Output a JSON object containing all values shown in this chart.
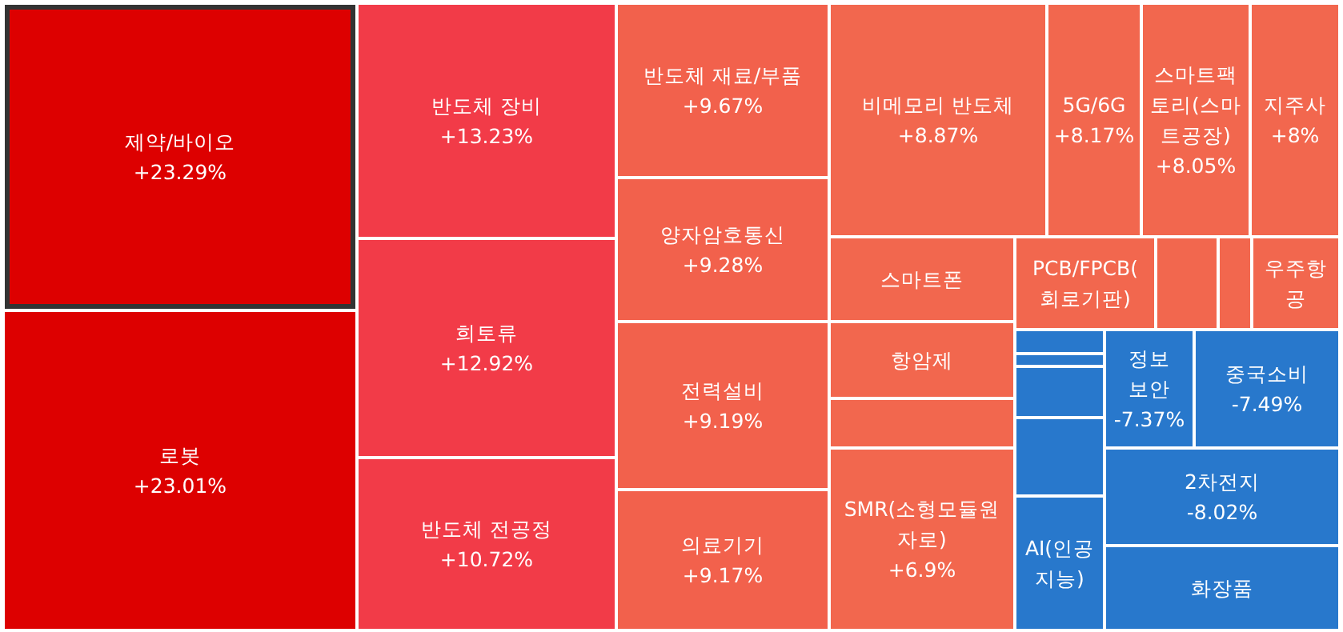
{
  "chart_data": {
    "type": "other",
    "categories": [
      "제약/바이오",
      "로봇",
      "반도체 장비",
      "희토류",
      "반도체 전공정",
      "반도체 재료/부품",
      "양자암호통신",
      "전력설비",
      "의료기기",
      "비메모리 반도체",
      "5G/6G",
      "스마트팩토리(스마트공장)",
      "지주사",
      "스마트폰",
      "항암제",
      null,
      "SMR(소형모듈원자로)",
      "PCB/FPCB(회로기판)",
      null,
      null,
      "우주항공",
      null,
      null,
      null,
      null,
      "AI(인공지능)",
      "정보 보안",
      "중국소비",
      "2차전지",
      "화장품"
    ],
    "values": [
      23.29,
      23.01,
      13.23,
      12.92,
      10.72,
      9.67,
      9.28,
      9.19,
      9.17,
      8.87,
      8.17,
      8.05,
      8,
      null,
      null,
      null,
      6.9,
      null,
      null,
      null,
      null,
      null,
      null,
      null,
      null,
      null,
      -7.37,
      -7.49,
      -8.02,
      null
    ],
    "value_labels": [
      "+23.29%",
      "+23.01%",
      "+13.23%",
      "+12.92%",
      "+10.72%",
      "+9.67%",
      "+9.28%",
      "+9.19%",
      "+9.17%",
      "+8.87%",
      "+8.17%",
      "+8.05%",
      "+8%",
      null,
      null,
      null,
      "+6.9%",
      null,
      null,
      null,
      null,
      null,
      null,
      null,
      null,
      null,
      "-7.37%",
      "-7.49%",
      "-8.02%",
      null
    ],
    "colors": [
      "#dd0000",
      "#dd0000",
      "#f23b48",
      "#f23b48",
      "#f23b48",
      "#f2614c",
      "#f2614c",
      "#f2614c",
      "#f2614c",
      "#f2674e",
      "#f2674e",
      "#f2674e",
      "#f2674e",
      "#f2674e",
      "#f2674e",
      "#f2674e",
      "#f2674e",
      "#f2674e",
      "#f2674e",
      "#f2674e",
      "#f2674e",
      "#2878cc",
      "#2878cc",
      "#2878cc",
      "#2878cc",
      "#2878cc",
      "#2878cc",
      "#2878cc",
      "#2878cc",
      "#2878cc"
    ]
  }
}
